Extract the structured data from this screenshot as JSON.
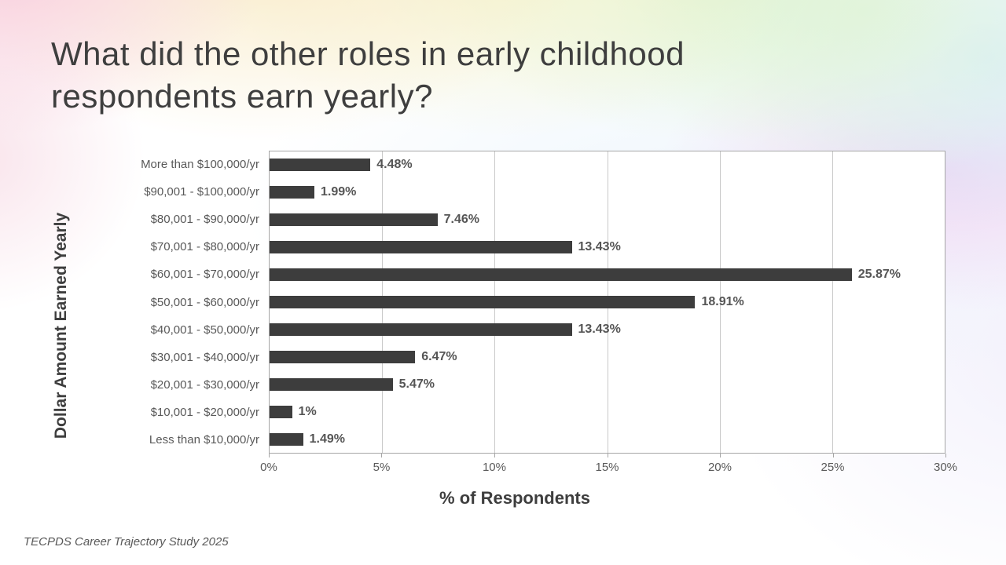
{
  "slide": {
    "title_line1": "What did the other roles in early childhood",
    "title_line2": "respondents earn yearly?",
    "footer": "TECPDS Career Trajectory Study 2025"
  },
  "chart_data": {
    "type": "bar",
    "orientation": "horizontal",
    "title": "",
    "xlabel": "% of Respondents",
    "ylabel": "Dollar Amount Earned Yearly",
    "categories": [
      "More than $100,000/yr",
      "$90,001 - $100,000/yr",
      "$80,001 - $90,000/yr",
      "$70,001 - $80,000/yr",
      "$60,001 - $70,000/yr",
      "$50,001 - $60,000/yr",
      "$40,001 - $50,000/yr",
      "$30,001 - $40,000/yr",
      "$20,001 - $30,000/yr",
      "$10,001 - $20,000/yr",
      "Less than $10,000/yr"
    ],
    "values": [
      4.48,
      1.99,
      7.46,
      13.43,
      25.87,
      18.91,
      13.43,
      6.47,
      5.47,
      1,
      1.49
    ],
    "data_labels": [
      "4.48%",
      "1.99%",
      "7.46%",
      "13.43%",
      "25.87%",
      "18.91%",
      "13.43%",
      "6.47%",
      "5.47%",
      "1%",
      "1.49%"
    ],
    "xlim": [
      0,
      30
    ],
    "x_tick_labels": [
      "0%",
      "5%",
      "10%",
      "15%",
      "20%",
      "25%",
      "30%"
    ],
    "grid": true,
    "legend": false,
    "bar_color": "#3d3d3d",
    "plot_background": "#ffffff"
  }
}
